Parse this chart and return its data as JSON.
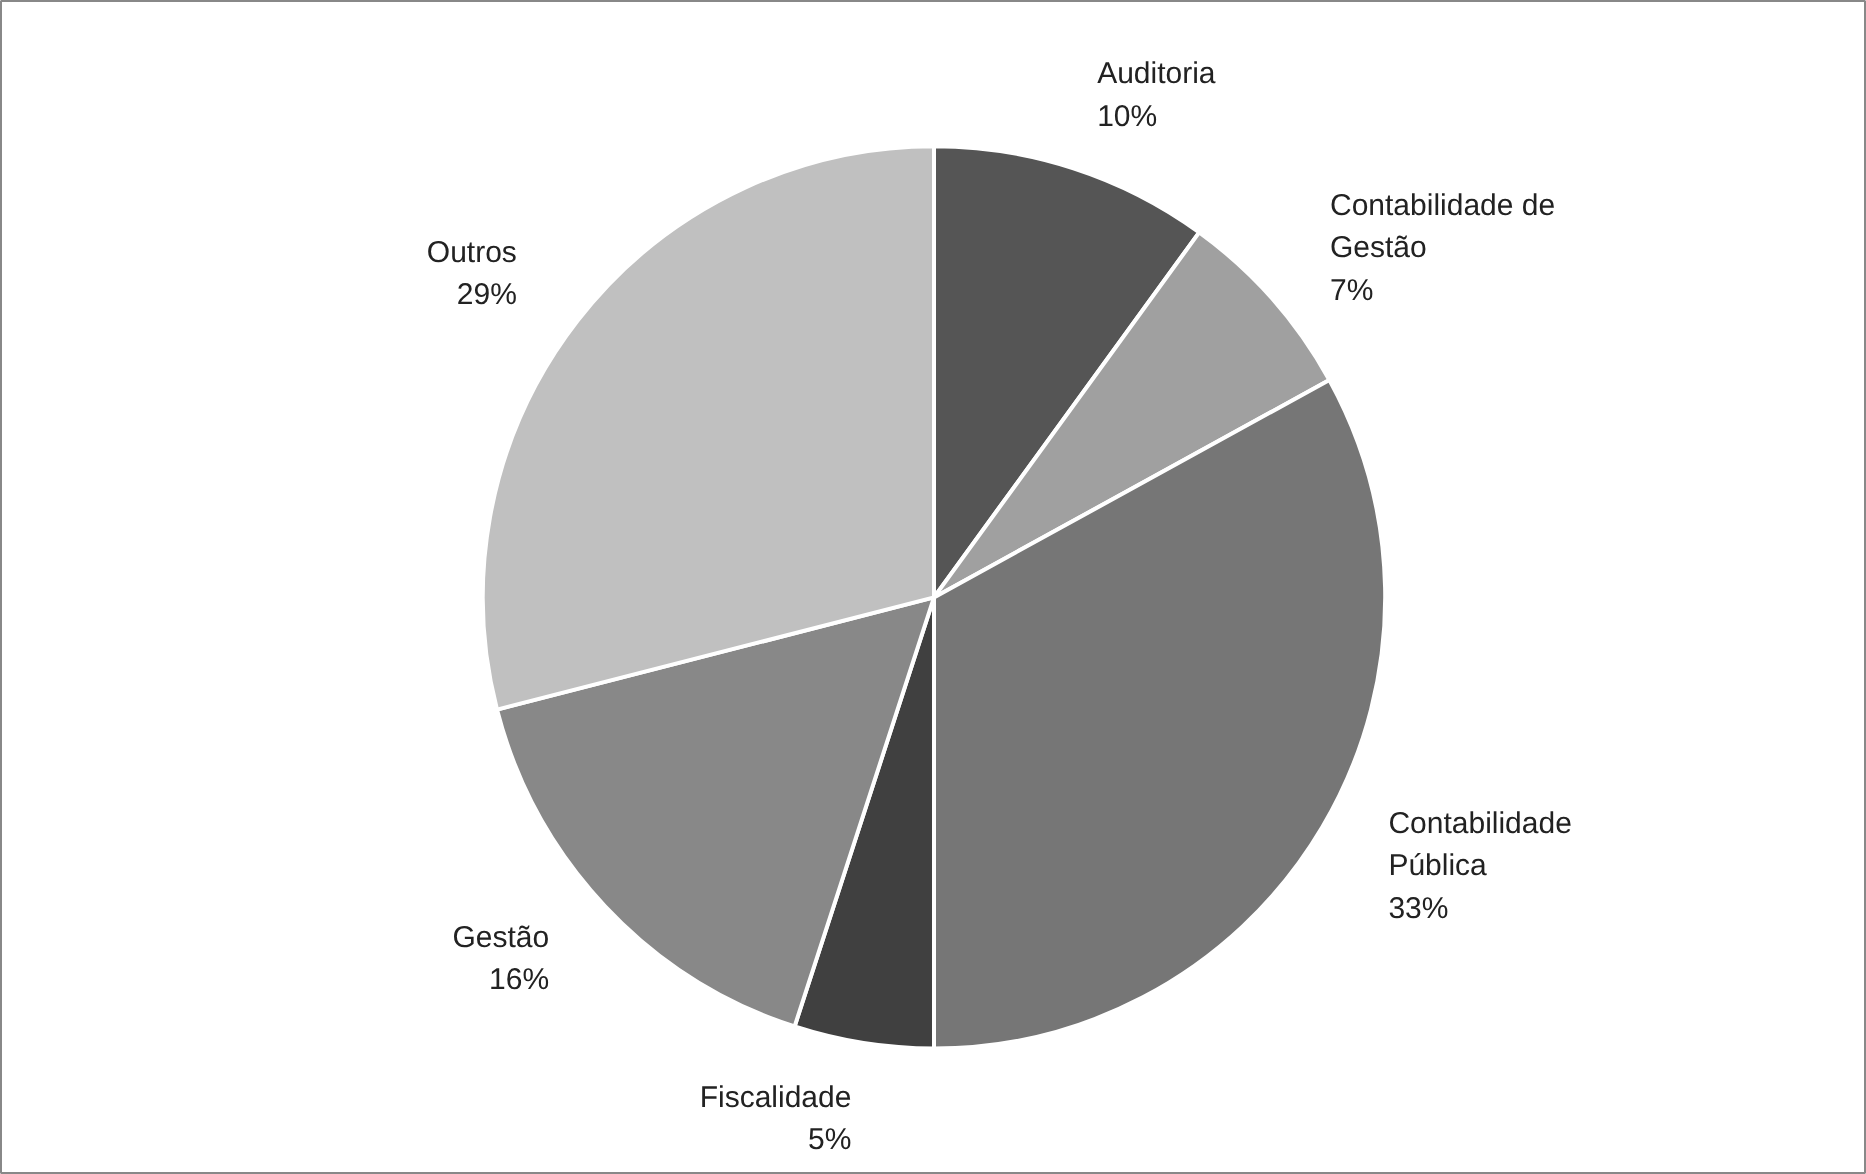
{
  "chart_data": {
    "type": "pie",
    "categories": [
      "Auditoria",
      "Contabilidade de Gestão",
      "Contabilidade Pública",
      "Fiscalidade",
      "Gestão",
      "Outros"
    ],
    "values": [
      10,
      7,
      33,
      5,
      16,
      29
    ],
    "value_labels": [
      "10%",
      "7%",
      "33%",
      "5%",
      "16%",
      "29%"
    ],
    "colors": [
      "#555555",
      "#a0a0a0",
      "#767676",
      "#404040",
      "#888888",
      "#c0c0c0"
    ]
  }
}
